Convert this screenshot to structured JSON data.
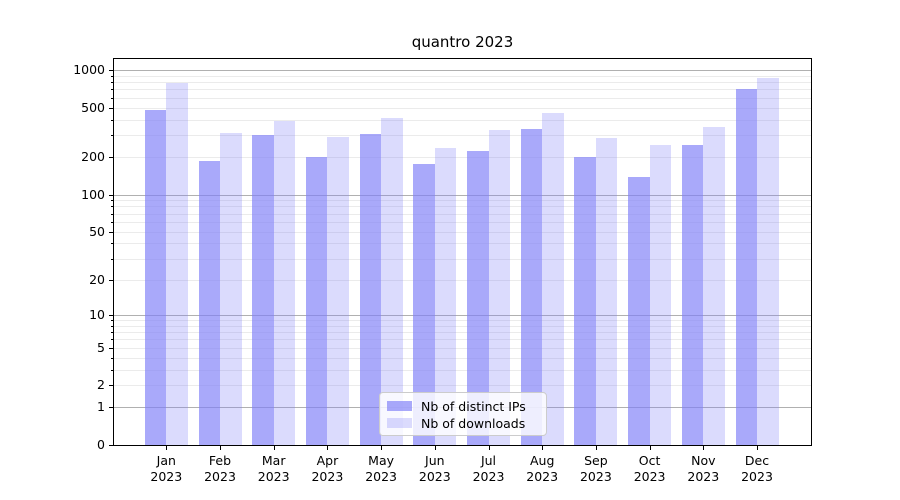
{
  "chart_data": {
    "type": "bar",
    "title": "quantro 2023",
    "categories": [
      "Jan\n2023",
      "Feb\n2023",
      "Mar\n2023",
      "Apr\n2023",
      "May\n2023",
      "Jun\n2023",
      "Jul\n2023",
      "Aug\n2023",
      "Sep\n2023",
      "Oct\n2023",
      "Nov\n2023",
      "Dec\n2023"
    ],
    "series": [
      {
        "name": "Nb of distinct IPs",
        "color": "#7f7ff8",
        "alpha": 0.67,
        "values": [
          480,
          185,
          300,
          200,
          305,
          175,
          225,
          335,
          200,
          138,
          250,
          700
        ]
      },
      {
        "name": "Nb of downloads",
        "color": "#7f7ff8",
        "alpha": 0.28,
        "values": [
          790,
          315,
          390,
          290,
          410,
          235,
          330,
          450,
          285,
          250,
          350,
          870
        ]
      }
    ],
    "xlabel": "",
    "ylabel": "",
    "yscale": "log1p",
    "yticks": [
      0,
      1,
      2,
      5,
      10,
      20,
      50,
      100,
      200,
      500,
      1000
    ],
    "ylim": [
      0,
      1210
    ],
    "grid": {
      "on": true,
      "major_color": "#b0b0b0",
      "minor_color": "#ebebeb"
    },
    "legend": {
      "position": "lower center"
    }
  }
}
